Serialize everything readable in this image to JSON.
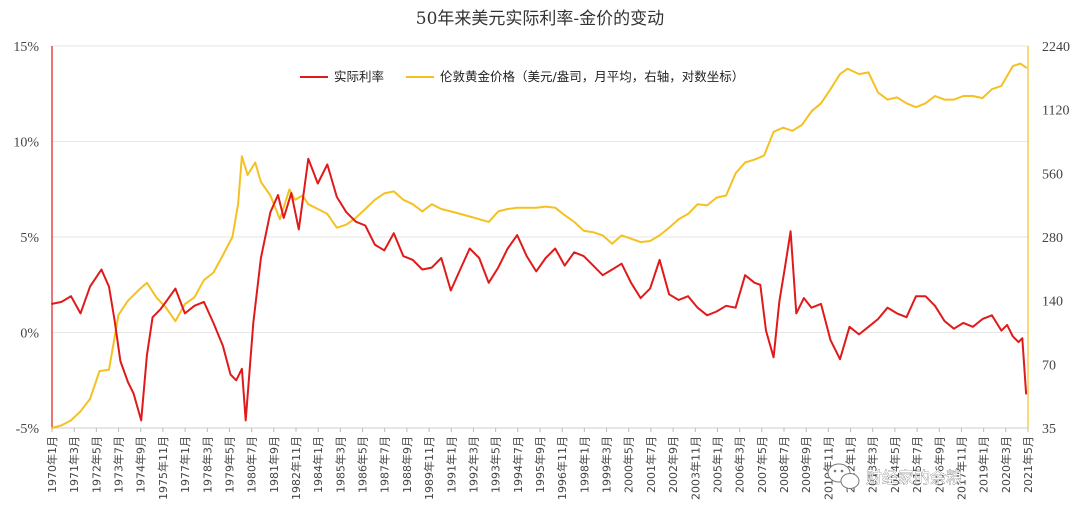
{
  "chart_data": {
    "type": "line",
    "title": "50年来美元实际利率-金价的变动",
    "legend_position": "top",
    "left_axis": {
      "ylim": [
        -5,
        15
      ],
      "ticks": [
        -5,
        0,
        5,
        10,
        15
      ],
      "tick_labels": [
        "-5%",
        "0%",
        "5%",
        "10%",
        "15%"
      ]
    },
    "right_axis": {
      "scale": "log",
      "ylim": [
        35,
        2240
      ],
      "ticks": [
        35,
        70,
        140,
        280,
        560,
        1120,
        2240
      ],
      "tick_labels": [
        "35",
        "70",
        "140",
        "280",
        "560",
        "1120",
        "2240"
      ]
    },
    "x_tick_labels": [
      "1970年1月",
      "1971年3月",
      "1972年5月",
      "1973年7月",
      "1974年9月",
      "1975年11月",
      "1977年1月",
      "1978年3月",
      "1979年5月",
      "1980年7月",
      "1981年9月",
      "1982年11月",
      "1984年1月",
      "1985年3月",
      "1986年5月",
      "1987年7月",
      "1988年9月",
      "1989年11月",
      "1991年1月",
      "1992年3月",
      "1993年5月",
      "1994年7月",
      "1995年9月",
      "1996年11月",
      "1998年1月",
      "1999年3月",
      "2000年5月",
      "2001年7月",
      "2002年9月",
      "2003年11月",
      "2005年1月",
      "2006年3月",
      "2007年5月",
      "2008年7月",
      "2009年9月",
      "2010年11月",
      "2012年1月",
      "2013年3月",
      "2014年5月",
      "2015年7月",
      "2016年9月",
      "2017年11月",
      "2019年1月",
      "2020年3月",
      "2021年5月"
    ],
    "x_range": [
      1970.0,
      2021.4
    ],
    "series": [
      {
        "name": "实际利率",
        "color": "#e01a1a",
        "axis": "left",
        "x": [
          1970.0,
          1970.5,
          1971.0,
          1971.5,
          1972.0,
          1972.6,
          1973.0,
          1973.3,
          1973.6,
          1974.0,
          1974.3,
          1974.7,
          1975.0,
          1975.3,
          1975.7,
          1976.0,
          1976.5,
          1977.0,
          1977.5,
          1978.0,
          1978.5,
          1979.0,
          1979.4,
          1979.7,
          1980.0,
          1980.2,
          1980.6,
          1981.0,
          1981.5,
          1981.9,
          1982.2,
          1982.6,
          1983.0,
          1983.5,
          1984.0,
          1984.5,
          1985.0,
          1985.5,
          1986.0,
          1986.5,
          1987.0,
          1987.5,
          1988.0,
          1988.5,
          1989.0,
          1989.5,
          1990.0,
          1990.5,
          1991.0,
          1991.5,
          1992.0,
          1992.5,
          1993.0,
          1993.5,
          1994.0,
          1994.5,
          1995.0,
          1995.5,
          1996.0,
          1996.5,
          1997.0,
          1997.5,
          1998.0,
          1998.5,
          1999.0,
          1999.5,
          2000.0,
          2000.5,
          2001.0,
          2001.5,
          2002.0,
          2002.5,
          2003.0,
          2003.5,
          2004.0,
          2004.5,
          2005.0,
          2005.5,
          2006.0,
          2006.5,
          2007.0,
          2007.3,
          2007.6,
          2008.0,
          2008.3,
          2008.6,
          2008.9,
          2009.2,
          2009.6,
          2010.0,
          2010.5,
          2011.0,
          2011.5,
          2012.0,
          2012.5,
          2013.0,
          2013.5,
          2014.0,
          2014.5,
          2015.0,
          2015.5,
          2016.0,
          2016.5,
          2017.0,
          2017.5,
          2018.0,
          2018.5,
          2019.0,
          2019.5,
          2020.0,
          2020.3,
          2020.6,
          2020.9,
          2021.1,
          2021.3
        ],
        "values": [
          1.5,
          1.6,
          1.9,
          1.0,
          2.4,
          3.3,
          2.4,
          0.6,
          -1.5,
          -2.6,
          -3.2,
          -4.6,
          -1.2,
          0.8,
          1.2,
          1.6,
          2.3,
          1.0,
          1.4,
          1.6,
          0.5,
          -0.7,
          -2.2,
          -2.5,
          -1.9,
          -4.6,
          0.5,
          3.9,
          6.3,
          7.2,
          6.0,
          7.3,
          5.4,
          9.1,
          7.8,
          8.8,
          7.1,
          6.3,
          5.8,
          5.6,
          4.6,
          4.3,
          5.2,
          4.0,
          3.8,
          3.3,
          3.4,
          3.9,
          2.2,
          3.3,
          4.4,
          3.9,
          2.6,
          3.4,
          4.4,
          5.1,
          4.0,
          3.2,
          3.9,
          4.4,
          3.5,
          4.2,
          4.0,
          3.5,
          3.0,
          3.3,
          3.6,
          2.6,
          1.8,
          2.3,
          3.8,
          2.0,
          1.7,
          1.9,
          1.3,
          0.9,
          1.1,
          1.4,
          1.3,
          3.0,
          2.6,
          2.5,
          0.1,
          -1.3,
          1.6,
          3.4,
          5.3,
          1.0,
          1.8,
          1.3,
          1.5,
          -0.4,
          -1.4,
          0.3,
          -0.1,
          0.3,
          0.7,
          1.3,
          1.0,
          0.8,
          1.9,
          1.9,
          1.4,
          0.6,
          0.2,
          0.5,
          0.3,
          0.7,
          0.9,
          0.1,
          0.4,
          -0.2,
          -0.5,
          -0.3,
          -3.2
        ]
      },
      {
        "name": "伦敦黄金价格（美元/盎司，月平均，右轴，对数坐标）",
        "color": "#f5c122",
        "axis": "right",
        "x": [
          1970.0,
          1970.5,
          1971.0,
          1971.5,
          1972.0,
          1972.5,
          1973.0,
          1973.5,
          1974.0,
          1974.5,
          1975.0,
          1975.5,
          1976.0,
          1976.5,
          1977.0,
          1977.5,
          1978.0,
          1978.5,
          1979.0,
          1979.5,
          1979.8,
          1980.0,
          1980.3,
          1980.7,
          1981.0,
          1981.5,
          1982.0,
          1982.5,
          1982.8,
          1983.2,
          1983.5,
          1984.0,
          1984.5,
          1985.0,
          1985.5,
          1986.0,
          1986.5,
          1987.0,
          1987.5,
          1988.0,
          1988.5,
          1989.0,
          1989.5,
          1990.0,
          1990.5,
          1991.0,
          1991.5,
          1992.0,
          1992.5,
          1993.0,
          1993.5,
          1994.0,
          1994.5,
          1995.0,
          1995.5,
          1996.0,
          1996.5,
          1997.0,
          1997.5,
          1998.0,
          1998.5,
          1999.0,
          1999.5,
          2000.0,
          2000.5,
          2001.0,
          2001.5,
          2002.0,
          2002.5,
          2003.0,
          2003.5,
          2004.0,
          2004.5,
          2005.0,
          2005.5,
          2006.0,
          2006.5,
          2007.0,
          2007.5,
          2008.0,
          2008.5,
          2009.0,
          2009.5,
          2010.0,
          2010.5,
          2011.0,
          2011.5,
          2011.9,
          2012.5,
          2013.0,
          2013.5,
          2014.0,
          2014.5,
          2015.0,
          2015.5,
          2016.0,
          2016.5,
          2017.0,
          2017.5,
          2018.0,
          2018.5,
          2019.0,
          2019.5,
          2020.0,
          2020.6,
          2021.0,
          2021.3
        ],
        "values": [
          35,
          36,
          38,
          42,
          48,
          65,
          66,
          120,
          140,
          155,
          170,
          145,
          130,
          112,
          135,
          145,
          175,
          190,
          230,
          280,
          400,
          675,
          550,
          630,
          510,
          440,
          340,
          470,
          420,
          440,
          400,
          380,
          360,
          310,
          320,
          345,
          380,
          420,
          450,
          460,
          420,
          400,
          370,
          400,
          380,
          370,
          360,
          350,
          340,
          330,
          370,
          380,
          385,
          385,
          385,
          390,
          385,
          355,
          330,
          300,
          295,
          285,
          260,
          285,
          275,
          265,
          268,
          285,
          310,
          340,
          360,
          400,
          395,
          430,
          440,
          560,
          630,
          650,
          680,
          880,
          920,
          890,
          950,
          1100,
          1200,
          1400,
          1650,
          1750,
          1650,
          1680,
          1350,
          1250,
          1280,
          1200,
          1150,
          1200,
          1300,
          1250,
          1250,
          1300,
          1300,
          1270,
          1400,
          1450,
          1800,
          1850,
          1770
        ]
      }
    ]
  },
  "watermark": {
    "text": "财经家的余粮"
  }
}
